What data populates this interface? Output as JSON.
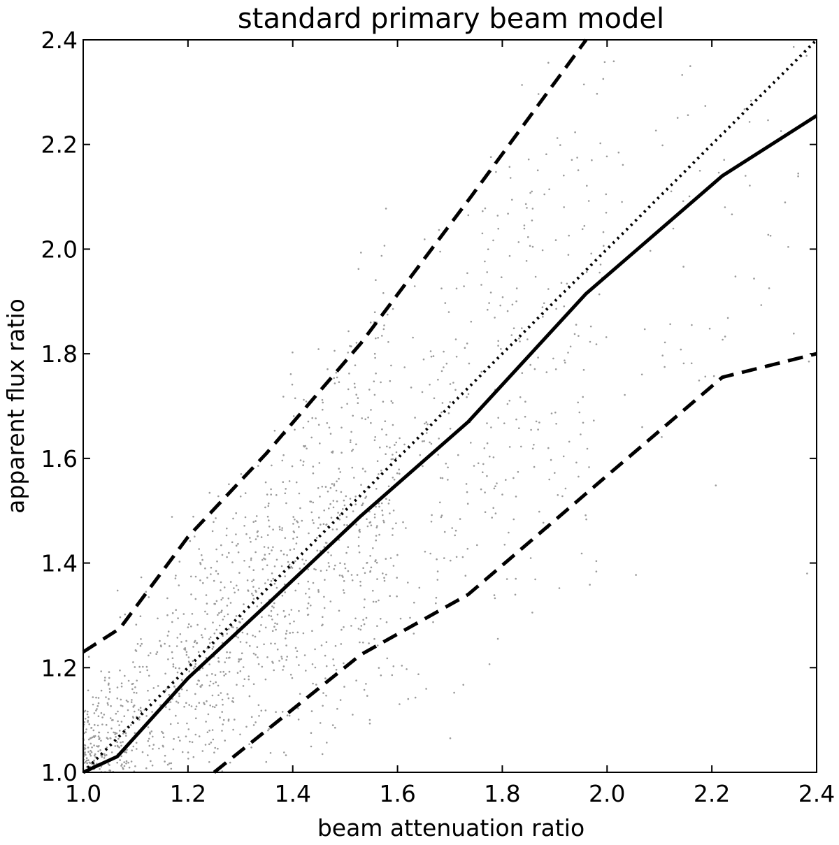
{
  "chart_data": {
    "type": "line",
    "title": "standard primary beam model",
    "xlabel": "beam attenuation ratio",
    "ylabel": "apparent flux ratio",
    "xlim": [
      1.0,
      2.4
    ],
    "ylim": [
      1.0,
      2.4
    ],
    "xticks": [
      "1.0",
      "1.2",
      "1.4",
      "1.6",
      "1.8",
      "2.0",
      "2.2",
      "2.4"
    ],
    "yticks": [
      "1.0",
      "1.2",
      "1.4",
      "1.6",
      "1.8",
      "2.0",
      "2.2",
      "2.4"
    ],
    "grid": false,
    "legend": "none",
    "series": [
      {
        "style": "solid",
        "color": "#000000",
        "x": [
          1.0,
          1.065,
          1.2,
          1.35,
          1.53,
          1.735,
          1.96,
          2.22,
          2.4
        ],
        "y": [
          1.0,
          1.03,
          1.18,
          1.32,
          1.49,
          1.67,
          1.915,
          2.14,
          2.255
        ]
      },
      {
        "style": "dashed",
        "color": "#000000",
        "x": [
          1.0,
          1.07,
          1.2,
          1.35,
          1.53,
          1.74,
          1.96
        ],
        "y": [
          1.23,
          1.275,
          1.45,
          1.61,
          1.82,
          2.1,
          2.4
        ]
      },
      {
        "style": "dashed",
        "color": "#000000",
        "x": [
          1.25,
          1.53,
          1.735,
          1.98,
          2.22,
          2.4
        ],
        "y": [
          1.0,
          1.225,
          1.34,
          1.55,
          1.755,
          1.8
        ]
      },
      {
        "style": "dotted",
        "color": "#000000",
        "x": [
          1.0,
          2.4
        ],
        "y": [
          1.0,
          2.4
        ]
      }
    ],
    "scatter": {
      "color": "#9a9a9a",
      "description_count": 1800
    }
  }
}
